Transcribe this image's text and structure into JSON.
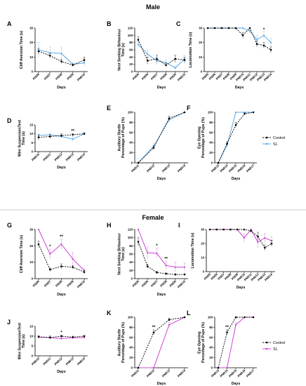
{
  "sections": [
    {
      "title": "Male",
      "experiment_color": "#5aa9e6"
    },
    {
      "title": "Female",
      "experiment_color": "#cc44d4"
    }
  ],
  "legends": [
    {
      "section": 0,
      "items": [
        {
          "label": "Control",
          "color": "#000000",
          "dashed": true
        },
        {
          "label": "SL",
          "color": "#5aa9e6",
          "dashed": false
        }
      ]
    },
    {
      "section": 1,
      "items": [
        {
          "label": "Control",
          "color": "#000000",
          "dashed": true
        },
        {
          "label": "SL",
          "color": "#cc44d4",
          "dashed": false
        }
      ]
    }
  ],
  "chart_data": [
    {
      "id": "A",
      "type": "line",
      "ylabel": [
        "Cliff Aversion Time (s)"
      ],
      "xlabel": "Days",
      "categories": [
        "PND6",
        "PND7",
        "PND8",
        "PND9",
        "PND10"
      ],
      "ylim": [
        0,
        30
      ],
      "yticks": [
        0,
        10,
        20,
        30
      ],
      "series": [
        {
          "name": "Control",
          "values": [
            14,
            11,
            7,
            4.5,
            8
          ],
          "errors": [
            2,
            1.5,
            1.5,
            0.8,
            2
          ]
        },
        {
          "name": "SL",
          "values": [
            15,
            13,
            12.5,
            5,
            6
          ],
          "errors": [
            5,
            4,
            4,
            1,
            2
          ]
        }
      ],
      "annotations": []
    },
    {
      "id": "B",
      "type": "line",
      "ylabel": [
        "Nest Seeking Behaviour",
        "Time (s)"
      ],
      "xlabel": "Days",
      "categories": [
        "PND5",
        "PND6",
        "PND7",
        "PND8",
        "PND9",
        "PND10"
      ],
      "ylim": [
        0,
        120
      ],
      "yticks": [
        0,
        20,
        40,
        60,
        80,
        100,
        120
      ],
      "series": [
        {
          "name": "Control",
          "values": [
            88,
            30,
            35,
            18,
            35,
            32
          ],
          "errors": [
            8,
            10,
            10,
            5,
            10,
            8
          ]
        },
        {
          "name": "SL",
          "values": [
            75,
            48,
            30,
            25,
            10,
            35
          ],
          "errors": [
            10,
            12,
            10,
            8,
            5,
            10
          ]
        }
      ],
      "annotations": []
    },
    {
      "id": "C",
      "type": "line",
      "ylabel": [
        "Locomotion Time (s)"
      ],
      "xlabel": "Days",
      "categories": [
        "PND5",
        "PND6",
        "PND7",
        "PND8",
        "PND9",
        "PND10",
        "PND11",
        "PND12",
        "PND13",
        "PND14"
      ],
      "ylim": [
        0,
        30
      ],
      "yticks": [
        0,
        10,
        20,
        30
      ],
      "series": [
        {
          "name": "Control",
          "values": [
            30,
            30,
            30,
            30,
            30,
            25,
            30,
            19,
            18,
            15
          ],
          "errors": [
            0,
            0,
            0,
            0,
            0,
            2,
            0,
            2,
            2,
            2
          ]
        },
        {
          "name": "SL",
          "values": [
            30,
            30,
            30,
            30,
            30,
            30,
            28,
            22,
            25,
            20
          ],
          "errors": [
            0,
            0,
            0,
            0,
            0,
            0,
            2,
            3,
            3,
            3
          ]
        }
      ],
      "annotations": [
        {
          "text": "*",
          "at": "PND13"
        }
      ]
    },
    {
      "id": "D",
      "type": "line",
      "ylabel": [
        "Wire SuspensionTest",
        "Time (s)"
      ],
      "xlabel": "Days",
      "categories": [
        "PND10",
        "PND11",
        "PND12",
        "PND13",
        "PND14"
      ],
      "ylim": [
        0,
        15
      ],
      "yticks": [
        0,
        5,
        10,
        15
      ],
      "series": [
        {
          "name": "Control",
          "values": [
            8,
            8.5,
            9,
            9.5,
            10
          ],
          "errors": [
            1.5,
            1,
            1,
            0.5,
            0.5
          ]
        },
        {
          "name": "SL",
          "values": [
            9,
            9.5,
            8.5,
            7,
            10
          ],
          "errors": [
            1,
            1,
            1,
            1.5,
            1
          ]
        }
      ],
      "annotations": [
        {
          "text": "**",
          "at": "PND13"
        }
      ]
    },
    {
      "id": "E",
      "type": "line",
      "ylabel": [
        "Auditory Startle",
        "Percentage of Pups (%)"
      ],
      "xlabel": "Days",
      "categories": [
        "PND11",
        "PND12",
        "PND13",
        "PND14"
      ],
      "ylim": [
        0,
        100
      ],
      "yticks": [
        0,
        20,
        40,
        60,
        80,
        100
      ],
      "series": [
        {
          "name": "Control",
          "values": [
            0,
            30,
            88,
            100
          ],
          "errors": [
            0,
            4,
            4,
            0
          ]
        },
        {
          "name": "SL",
          "values": [
            0,
            33,
            85,
            100
          ],
          "errors": [
            0,
            5,
            6,
            0
          ]
        }
      ],
      "annotations": []
    },
    {
      "id": "F",
      "type": "line",
      "ylabel": [
        "Eye Opening",
        "Percentage of Pups (%)"
      ],
      "xlabel": "Days",
      "categories": [
        "PND13",
        "PND14",
        "PND15",
        "PND16",
        "PND17"
      ],
      "ylim": [
        0,
        100
      ],
      "yticks": [
        0,
        20,
        40,
        60,
        80,
        100
      ],
      "series": [
        {
          "name": "Control",
          "values": [
            0,
            38,
            75,
            97,
            100
          ],
          "errors": [
            0,
            4,
            5,
            2,
            0
          ]
        },
        {
          "name": "SL",
          "values": [
            0,
            35,
            100,
            100,
            100
          ],
          "errors": [
            0,
            5,
            0,
            0,
            0
          ]
        }
      ],
      "annotations": []
    },
    {
      "id": "G",
      "type": "line",
      "ylabel": [
        "Cliff Aversion Time (s)"
      ],
      "xlabel": "Days",
      "categories": [
        "PND6",
        "PND7",
        "PND8",
        "PND9",
        "PND10"
      ],
      "ylim": [
        0,
        30
      ],
      "yticks": [
        0,
        10,
        20,
        30
      ],
      "series": [
        {
          "name": "Control",
          "values": [
            21,
            5.5,
            7.5,
            7,
            4
          ],
          "errors": [
            2,
            1,
            1.5,
            1,
            1
          ]
        },
        {
          "name": "SL",
          "values": [
            30,
            15,
            21,
            12,
            5
          ],
          "errors": [
            0,
            3,
            3,
            4,
            1
          ]
        }
      ],
      "annotations": [
        {
          "text": "*",
          "at": "PND7"
        },
        {
          "text": "**",
          "at": "PND8"
        }
      ]
    },
    {
      "id": "H",
      "type": "line",
      "ylabel": [
        "Nest Seeking Behaviour",
        "Time (s)"
      ],
      "xlabel": "Days",
      "categories": [
        "PND5",
        "PND6",
        "PND7",
        "PND8",
        "PND9",
        "PND10"
      ],
      "ylim": [
        0,
        120
      ],
      "yticks": [
        0,
        20,
        40,
        60,
        80,
        100,
        120
      ],
      "series": [
        {
          "name": "Control",
          "values": [
            90,
            30,
            15,
            12,
            10,
            10
          ],
          "errors": [
            10,
            5,
            3,
            2,
            2,
            2
          ]
        },
        {
          "name": "SL",
          "values": [
            120,
            63,
            62,
            32,
            28,
            28
          ],
          "errors": [
            0,
            15,
            12,
            10,
            12,
            10
          ]
        }
      ],
      "annotations": [
        {
          "text": "*",
          "at": "PND7"
        },
        {
          "text": "**",
          "at": "PND8"
        }
      ]
    },
    {
      "id": "I",
      "type": "line",
      "ylabel": [
        "Locomotion Time (s)"
      ],
      "xlabel": "Days",
      "categories": [
        "PND5",
        "PND6",
        "PND7",
        "PND8",
        "PND9",
        "PND10",
        "PND11",
        "PND12",
        "PND13",
        "PND14"
      ],
      "ylim": [
        0,
        30
      ],
      "yticks": [
        0,
        10,
        20,
        30
      ],
      "series": [
        {
          "name": "Control",
          "values": [
            30,
            30,
            30,
            30,
            30,
            30,
            29,
            25,
            17,
            20
          ],
          "errors": [
            0,
            0,
            0,
            0,
            0,
            0,
            1,
            3,
            2,
            2
          ]
        },
        {
          "name": "SL",
          "values": [
            30,
            30,
            30,
            30,
            30,
            24,
            30,
            21,
            24,
            22
          ],
          "errors": [
            0,
            0,
            0,
            0,
            0,
            3,
            0,
            4,
            3,
            3
          ]
        }
      ],
      "annotations": []
    },
    {
      "id": "J",
      "type": "line",
      "ylabel": [
        "Wire SuspensionTest",
        "Time (s)"
      ],
      "xlabel": "Days",
      "categories": [
        "PND10",
        "PND11",
        "PND12",
        "PND13",
        "PND14"
      ],
      "ylim": [
        0,
        15
      ],
      "yticks": [
        0,
        5,
        10,
        15
      ],
      "series": [
        {
          "name": "Control",
          "values": [
            9.7,
            9.3,
            10,
            9.5,
            10
          ],
          "errors": [
            0.5,
            0.8,
            0.5,
            0.5,
            0.4
          ]
        },
        {
          "name": "SL",
          "values": [
            9.5,
            9.3,
            8.8,
            9.2,
            9.3
          ],
          "errors": [
            0.6,
            0.7,
            0.8,
            0.6,
            0.6
          ]
        }
      ],
      "annotations": [
        {
          "text": "*",
          "at": "PND12"
        }
      ]
    },
    {
      "id": "K",
      "type": "line",
      "ylabel": [
        "Auditory Startle",
        "Percentage of Pups (%)"
      ],
      "xlabel": "Days",
      "categories": [
        "PND11",
        "PND12",
        "PND13",
        "PND14"
      ],
      "ylim": [
        0,
        100
      ],
      "yticks": [
        0,
        20,
        40,
        60,
        80,
        100
      ],
      "series": [
        {
          "name": "Control",
          "values": [
            0,
            70,
            95,
            100
          ],
          "errors": [
            0,
            5,
            3,
            0
          ]
        },
        {
          "name": "SL",
          "values": [
            0,
            0,
            85,
            100
          ],
          "errors": [
            0,
            0,
            5,
            0
          ]
        }
      ],
      "annotations": [
        {
          "text": "**",
          "at": "PND12"
        }
      ]
    },
    {
      "id": "L",
      "type": "line",
      "ylabel": [
        "Eye Opening",
        "Percentage of Pups (%)"
      ],
      "xlabel": "Days",
      "categories": [
        "PND13",
        "PND14",
        "PND15",
        "PND16",
        "PND17"
      ],
      "ylim": [
        0,
        100
      ],
      "yticks": [
        0,
        20,
        40,
        60,
        80,
        100
      ],
      "series": [
        {
          "name": "Control",
          "values": [
            0,
            70,
            100,
            100,
            100
          ],
          "errors": [
            0,
            5,
            0,
            0,
            0
          ]
        },
        {
          "name": "SL",
          "values": [
            0,
            0,
            85,
            100,
            100
          ],
          "errors": [
            0,
            0,
            5,
            0,
            0
          ]
        }
      ],
      "annotations": [
        {
          "text": "**",
          "at": "PND14"
        },
        {
          "text": "*",
          "at": "PND15"
        }
      ]
    }
  ]
}
